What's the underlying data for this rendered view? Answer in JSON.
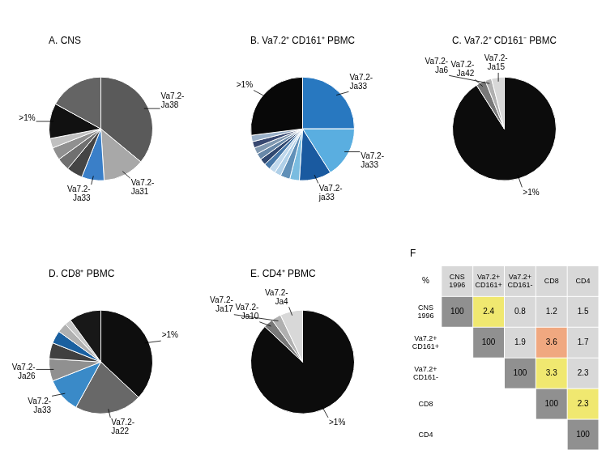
{
  "chart_data": [
    {
      "type": "pie",
      "title": "A. CNS",
      "categories": [
        "Va7.2-\nJa38",
        "Va7.2-\nJa31",
        "Va7.2-\nJa33",
        null,
        null,
        null,
        null,
        ">1%",
        null
      ],
      "values": [
        36,
        13,
        7,
        5,
        4,
        4,
        3,
        11,
        17
      ],
      "colors": [
        "#5a5a5a",
        "#a8a8a8",
        "#3a7fc8",
        "#454545",
        "#707070",
        "#909090",
        "#c0c0c0",
        "#111111",
        "#646464"
      ]
    },
    {
      "type": "pie",
      "title": "B. Va7.2⁺ CD161⁺ PBMC",
      "categories": [
        "Va7.2-\nJa33",
        "Va7.2-\nJa33",
        "Va7.2-\nja33",
        null,
        null,
        null,
        null,
        null,
        null,
        null,
        null,
        null,
        null,
        ">1%"
      ],
      "values": [
        25,
        16,
        10,
        3,
        3,
        2,
        2,
        2,
        2,
        2,
        2,
        2,
        2,
        27
      ],
      "colors": [
        "#2878c0",
        "#5aaee0",
        "#1a5aa0",
        "#7abce0",
        "#6090b8",
        "#b0d0e8",
        "#c0d8ec",
        "#4878a8",
        "#304870",
        "#6888a8",
        "#8098b0",
        "#384870",
        "#9ab0c8",
        "#080808"
      ]
    },
    {
      "type": "pie",
      "title": "C. Va7.2⁺ CD161⁻ PBMC",
      "categories": [
        ">1%",
        "Va7.2-\nJa42",
        "Va7.2-\nJa6",
        "Va7.2-\nJa15"
      ],
      "values": [
        91,
        3,
        2,
        4
      ],
      "colors": [
        "#0c0c0c",
        "#787878",
        "#b0b0b0",
        "#d8d8d8"
      ]
    },
    {
      "type": "pie",
      "title": "D. CD8⁺ PBMC",
      "categories": [
        ">1%",
        "Va7.2-\nJa22",
        "Va7.2-\nJa33",
        "Va7.2-\nJa26",
        null,
        null,
        null,
        null,
        null
      ],
      "values": [
        37,
        21,
        11,
        7,
        5,
        4,
        3,
        2,
        10
      ],
      "colors": [
        "#0e0e0e",
        "#686868",
        "#3a8ac8",
        "#909090",
        "#404040",
        "#1a60a0",
        "#b0b0b0",
        "#c8c8c8",
        "#181818"
      ]
    },
    {
      "type": "pie",
      "title": "E. CD4⁺ PBMC",
      "categories": [
        ">1%",
        "Va7.2-\nJa10",
        "Va7.2-\nJa17",
        "Va7.2-\nJa4"
      ],
      "values": [
        87,
        3,
        3,
        7
      ],
      "colors": [
        "#0c0c0c",
        "#787878",
        "#b0b0b0",
        "#d8d8d8"
      ]
    },
    {
      "type": "table",
      "title": "F",
      "corner_label": "%",
      "row_labels": [
        "CNS\n1996",
        "Va7.2+\nCD161+",
        "Va7.2+\nCD161-",
        "CD8",
        "CD4"
      ],
      "col_labels": [
        "CNS\n1996",
        "Va7.2+\nCD161+",
        "Va7.2+\nCD161-",
        "CD8",
        "CD4"
      ],
      "values": [
        [
          100,
          2.4,
          0.8,
          1.2,
          1.5
        ],
        [
          null,
          100,
          1.9,
          3.6,
          1.7
        ],
        [
          null,
          null,
          100,
          3.3,
          2.3
        ],
        [
          null,
          null,
          null,
          100,
          2.3
        ],
        [
          null,
          null,
          null,
          null,
          100
        ]
      ],
      "header_color": "#d8d8d8",
      "colors": [
        [
          "#909090",
          "#f0e870",
          "#d8d8d8",
          "#d8d8d8",
          "#d8d8d8"
        ],
        [
          "#ffffff",
          "#909090",
          "#d8d8d8",
          "#f0a880",
          "#d8d8d8"
        ],
        [
          "#ffffff",
          "#ffffff",
          "#909090",
          "#f0e870",
          "#d8d8d8"
        ],
        [
          "#ffffff",
          "#ffffff",
          "#ffffff",
          "#909090",
          "#f0e870"
        ],
        [
          "#ffffff",
          "#ffffff",
          "#ffffff",
          "#ffffff",
          "#909090"
        ]
      ]
    }
  ]
}
